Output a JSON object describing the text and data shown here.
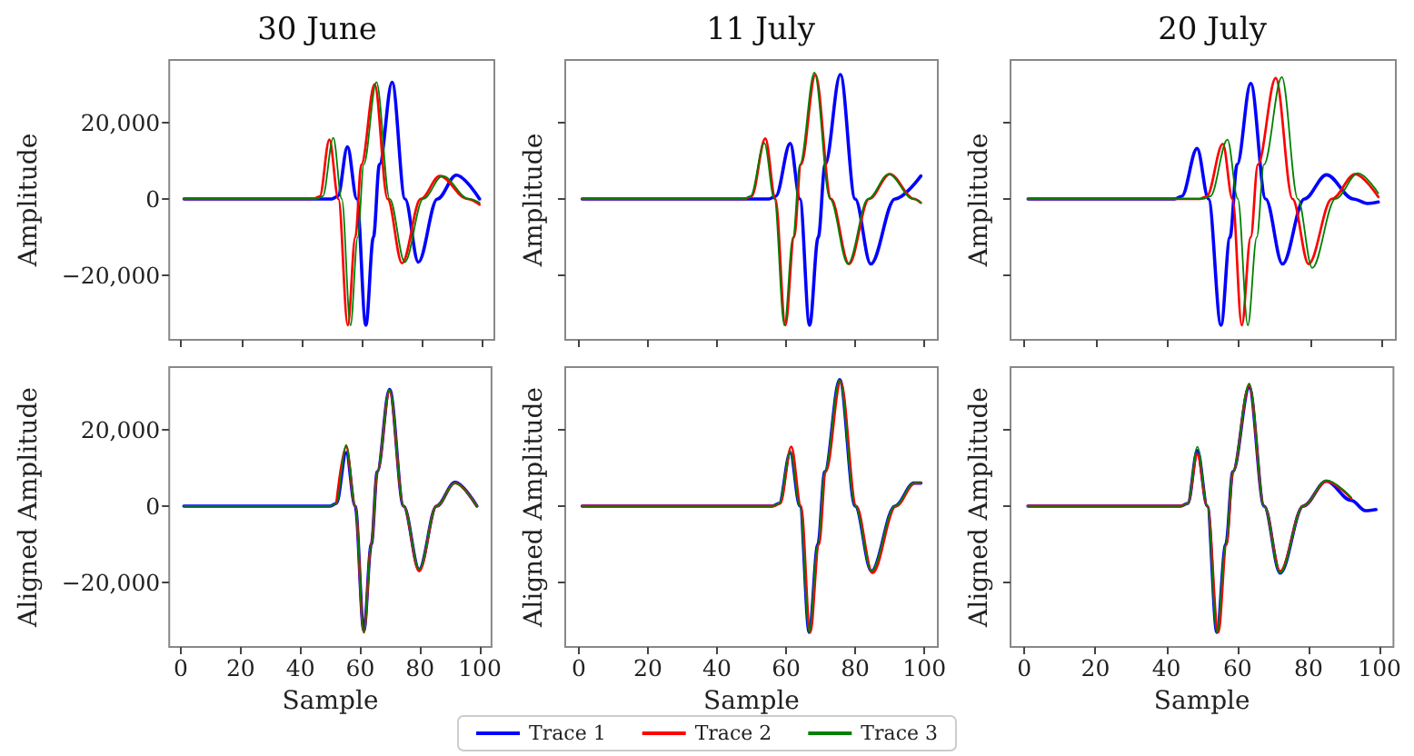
{
  "chart_data": [
    {
      "type": "line",
      "title": "30 June",
      "ylabel": "Amplitude",
      "xlim": [
        -3.9,
        103.9
      ],
      "xticks": [
        0,
        20,
        40,
        60,
        80,
        100
      ],
      "ylim": [
        -36800,
        36300
      ],
      "yticks": [
        {
          "value": -20000,
          "label": "−20,000"
        },
        {
          "value": 0,
          "label": "0"
        },
        {
          "value": 20000,
          "label": "20,000"
        }
      ],
      "tick_labels": "y",
      "grid": false,
      "marker": "none",
      "line_style": "solid",
      "series": [
        {
          "color": "#0000ff",
          "x": [
            1,
            50,
            52,
            55.2,
            58.3,
            61.3,
            63.8,
            65.8,
            70,
            74.3,
            78.7,
            85,
            91.3,
            99
          ],
          "values": [
            0,
            0,
            700,
            13600,
            0,
            -33000,
            -10000,
            9000,
            30500,
            0,
            -16500,
            0,
            6200,
            0
          ]
        },
        {
          "color": "#ff0000",
          "x": [
            1,
            44,
            46,
            49.2,
            52.2,
            55.3,
            57.8,
            59.8,
            64.2,
            68.5,
            73.3,
            79.5,
            85.8,
            95,
            99
          ],
          "values": [
            0,
            0,
            700,
            15500,
            0,
            -33000,
            -10000,
            9000,
            30000,
            0,
            -16800,
            0,
            6000,
            0,
            -1500
          ]
        },
        {
          "color": "#008000",
          "x": [
            1,
            45,
            47,
            50.5,
            53.3,
            56.2,
            58.6,
            60.6,
            64.8,
            69.2,
            74.2,
            80.3,
            86.7,
            95.5,
            99
          ],
          "values": [
            0,
            0,
            700,
            16000,
            0,
            -33000,
            -10000,
            9000,
            30500,
            0,
            -16500,
            0,
            6000,
            0,
            -1000
          ]
        }
      ]
    },
    {
      "type": "line",
      "title": "11 July",
      "ylabel": "Amplitude",
      "xlim": [
        -3.9,
        103.9
      ],
      "xticks": [
        0,
        20,
        40,
        60,
        80,
        100
      ],
      "ylim": [
        -36800,
        36300
      ],
      "yticks": [
        -20000,
        0,
        20000
      ],
      "tick_labels": false,
      "grid": false,
      "marker": "none",
      "line_style": "solid",
      "series": [
        {
          "color": "#0000ff",
          "x": [
            1,
            55,
            57,
            61.2,
            64,
            66.8,
            69.3,
            71.3,
            75.7,
            80,
            84.5,
            91.5,
            99
          ],
          "values": [
            0,
            0,
            700,
            14500,
            0,
            -33000,
            -10000,
            9000,
            32500,
            0,
            -17000,
            0,
            6000
          ]
        },
        {
          "color": "#ff0000",
          "x": [
            1,
            48,
            50,
            54,
            56.9,
            59.8,
            62.3,
            64.3,
            68.5,
            73,
            78.2,
            84,
            90,
            97,
            99
          ],
          "values": [
            0,
            0,
            700,
            15800,
            0,
            -33000,
            -10000,
            9000,
            32500,
            0,
            -17000,
            0,
            6500,
            0,
            -1000
          ]
        },
        {
          "color": "#008000",
          "x": [
            1,
            47.7,
            49.7,
            53.7,
            56.6,
            59.5,
            62,
            64,
            68.2,
            72.7,
            77.9,
            83.7,
            89.7,
            96.7,
            99
          ],
          "values": [
            0,
            0,
            700,
            14600,
            0,
            -33000,
            -10000,
            9000,
            33000,
            0,
            -17000,
            0,
            6500,
            0,
            -1000
          ]
        }
      ]
    },
    {
      "type": "line",
      "title": "20 July",
      "ylabel": "Amplitude",
      "xlim": [
        -3.9,
        103.9
      ],
      "xticks": [
        0,
        20,
        40,
        60,
        80,
        100
      ],
      "ylim": [
        -36800,
        36300
      ],
      "yticks": [
        -20000,
        0,
        20000
      ],
      "tick_labels": false,
      "grid": false,
      "marker": "none",
      "line_style": "solid",
      "series": [
        {
          "color": "#0000ff",
          "x": [
            1,
            42,
            44,
            48.3,
            51.5,
            55,
            57.5,
            59.5,
            63.3,
            67.5,
            72.2,
            78.3,
            84.5,
            92,
            96,
            99
          ],
          "values": [
            0,
            0,
            700,
            13200,
            0,
            -33000,
            -10000,
            9000,
            30200,
            0,
            -17000,
            0,
            6300,
            0,
            -1200,
            -800
          ]
        },
        {
          "color": "#ff0000",
          "x": [
            1,
            49,
            51,
            55.5,
            58.2,
            60.8,
            63.3,
            65.3,
            70.3,
            75,
            79.5,
            86,
            92.5,
            99
          ],
          "values": [
            0,
            0,
            700,
            14400,
            0,
            -33000,
            -10000,
            9000,
            31600,
            0,
            -17000,
            0,
            6500,
            500
          ]
        },
        {
          "color": "#008000",
          "x": [
            1,
            50,
            52,
            56.8,
            59.7,
            62.5,
            65,
            67,
            72,
            76.5,
            80.5,
            87,
            93.3,
            99
          ],
          "values": [
            0,
            0,
            700,
            15500,
            0,
            -33000,
            -10000,
            9000,
            31800,
            0,
            -18000,
            0,
            6700,
            1500
          ]
        }
      ]
    },
    {
      "type": "line",
      "ylabel": "Aligned Amplitude",
      "xlabel": "Sample",
      "xlim": [
        -3.9,
        103.9
      ],
      "xticks": [
        0,
        20,
        40,
        60,
        80,
        100
      ],
      "ylim": [
        -36800,
        36300
      ],
      "yticks": [
        {
          "value": -20000,
          "label": "−20,000"
        },
        {
          "value": 0,
          "label": "0"
        },
        {
          "value": 20000,
          "label": "20,000"
        }
      ],
      "grid": false,
      "marker": "none",
      "line_style": "solid",
      "series": [
        {
          "color": "#0000ff",
          "x": [
            1,
            50,
            52,
            55.3,
            58.3,
            61.2,
            63.7,
            65.7,
            69.8,
            74.5,
            79.7,
            85.5,
            91.7,
            99
          ],
          "values": [
            0,
            0,
            700,
            14000,
            0,
            -32500,
            -10000,
            9000,
            30500,
            0,
            -16500,
            0,
            6200,
            0
          ]
        },
        {
          "color": "#ff0000",
          "x": [
            52,
            55.3,
            58.3,
            61.2,
            63.7,
            65.7,
            69.8,
            74.5,
            79.7,
            85.5,
            91.7,
            99
          ],
          "values": [
            700,
            15500,
            0,
            -33000,
            -10000,
            9000,
            30000,
            0,
            -17000,
            0,
            6000,
            0
          ]
        },
        {
          "color": "#008000",
          "x": [
            1,
            50,
            52,
            55.3,
            58.3,
            61.2,
            63.7,
            65.7,
            69.8,
            74.5,
            79.7,
            85.5,
            91.7,
            99
          ],
          "values": [
            0,
            0,
            700,
            16000,
            0,
            -33000,
            -10000,
            9000,
            30500,
            0,
            -16500,
            0,
            6000,
            0
          ]
        }
      ]
    },
    {
      "type": "line",
      "ylabel": "Aligned Amplitude",
      "xlabel": "Sample",
      "xlim": [
        -3.9,
        103.9
      ],
      "xticks": [
        0,
        20,
        40,
        60,
        80,
        100
      ],
      "ylim": [
        -36800,
        36300
      ],
      "yticks": [
        -20000,
        0,
        20000
      ],
      "tick_labels": "x",
      "grid": false,
      "legend": "bottom",
      "marker": "none",
      "line_style": "solid",
      "series": [
        {
          "name": "Trace 1",
          "color": "#0000ff",
          "x": [
            1,
            56,
            58,
            61.2,
            64,
            66.7,
            69.2,
            71.2,
            75.5,
            80,
            84.7,
            91.5,
            97,
            99
          ],
          "values": [
            0,
            0,
            700,
            14000,
            0,
            -33000,
            -10000,
            9000,
            33000,
            0,
            -17000,
            0,
            6000,
            6000
          ]
        },
        {
          "name": "Trace 2",
          "color": "#ff0000",
          "x": [
            1,
            56.3,
            58.3,
            61.5,
            64.3,
            67,
            69.5,
            71.5,
            75.8,
            80.3,
            85,
            91.8,
            97.3,
            99
          ],
          "values": [
            0,
            0,
            700,
            15500,
            0,
            -33000,
            -10000,
            9000,
            32500,
            0,
            -17500,
            0,
            6000,
            6000
          ]
        },
        {
          "name": "Trace 3",
          "color": "#008000",
          "x": [
            1,
            56,
            58,
            61.2,
            64,
            66.7,
            69.2,
            71.2,
            75.5,
            80,
            84.7,
            91.5,
            97,
            99
          ],
          "values": [
            0,
            0,
            700,
            14300,
            0,
            -33000,
            -10000,
            9000,
            33000,
            0,
            -17000,
            0,
            6000,
            6000
          ]
        }
      ]
    },
    {
      "type": "line",
      "ylabel": "Aligned Amplitude",
      "xlabel": "Sample",
      "xlim": [
        -3.9,
        103.9
      ],
      "xticks": [
        0,
        20,
        40,
        60,
        80,
        100
      ],
      "ylim": [
        -36800,
        36300
      ],
      "yticks": [
        -20000,
        0,
        20000
      ],
      "tick_labels": "x",
      "grid": false,
      "marker": "none",
      "line_style": "solid",
      "series": [
        {
          "color": "#0000ff",
          "x": [
            1,
            44,
            46,
            48.7,
            51.5,
            54.2,
            56.7,
            58.7,
            63.3,
            67.5,
            72,
            78.5,
            85,
            92,
            96,
            99
          ],
          "values": [
            0,
            0,
            700,
            14500,
            0,
            -33000,
            -10000,
            9000,
            31000,
            0,
            -17500,
            0,
            6500,
            1500,
            -1200,
            -900
          ]
        },
        {
          "color": "#ff0000",
          "x": [
            1,
            44,
            46,
            48.7,
            51.5,
            54.6,
            56.9,
            58.7,
            63.3,
            67.5,
            72,
            78.5,
            85,
            92
          ],
          "values": [
            0,
            0,
            700,
            13500,
            0,
            -33000,
            -10000,
            9000,
            31500,
            0,
            -17000,
            0,
            6500,
            2000
          ]
        },
        {
          "color": "#008000",
          "x": [
            1,
            44,
            46,
            48.7,
            51.5,
            54.2,
            56.7,
            58.7,
            63.3,
            67.5,
            72,
            78.5,
            85,
            92
          ],
          "values": [
            0,
            0,
            700,
            15500,
            0,
            -33000,
            -10000,
            9000,
            32000,
            0,
            -17500,
            0,
            6700,
            2300
          ]
        }
      ]
    }
  ]
}
